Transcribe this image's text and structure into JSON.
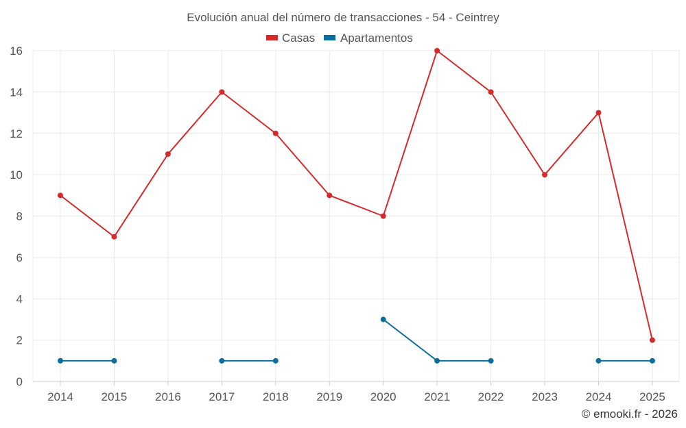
{
  "chart_data": {
    "type": "line",
    "title": "Evolución anual del número de transacciones - 54 - Ceintrey",
    "categories": [
      "2014",
      "2015",
      "2016",
      "2017",
      "2018",
      "2019",
      "2020",
      "2021",
      "2022",
      "2023",
      "2024",
      "2025"
    ],
    "ylim": [
      0,
      16
    ],
    "yticks": [
      "0",
      "2",
      "4",
      "6",
      "8",
      "10",
      "12",
      "14",
      "16"
    ],
    "grid": true,
    "legend_position": "top-center",
    "series": [
      {
        "name": "Casas",
        "color": "#d62a2a",
        "values": [
          9,
          7,
          11,
          14,
          12,
          9,
          8,
          16,
          14,
          10,
          13,
          2
        ]
      },
      {
        "name": "Apartamentos",
        "color": "#0b6fa0",
        "values": [
          1,
          1,
          null,
          1,
          1,
          null,
          3,
          1,
          1,
          null,
          1,
          1
        ]
      }
    ],
    "credit": "© emooki.fr - 2026"
  }
}
